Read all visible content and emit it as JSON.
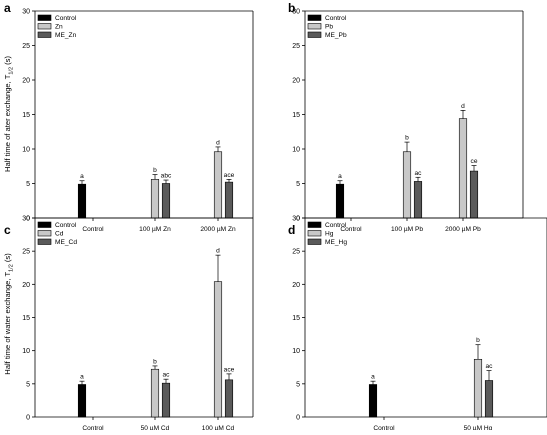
{
  "figure": {
    "ylabel_top": "Half time of ater exchange, T",
    "ylabel_bottom": "Half time of water exchange, T",
    "ylabel_subscript": "1/2",
    "ylabel_unit": "(s)"
  },
  "colors": {
    "control": "#000000",
    "metal": "#c8c8c8",
    "me": "#5a5a5a",
    "axis": "#000000"
  },
  "chart_data": [
    {
      "panel_letter": "a",
      "type": "bar",
      "ylim": [
        0,
        30
      ],
      "yticks": [
        0,
        5,
        10,
        15,
        20,
        25,
        30
      ],
      "categories": [
        "Control",
        "100 µM Zn",
        "2000 µM Zn"
      ],
      "legend": {
        "placement": "top-left",
        "entries": [
          "Control",
          "Zn",
          "ME_Zn"
        ]
      },
      "series": [
        {
          "name": "Control",
          "values": [
            4.9,
            null,
            null
          ],
          "errors": [
            0.5,
            null,
            null
          ],
          "labels": [
            "a",
            null,
            null
          ]
        },
        {
          "name": "Zn",
          "values": [
            null,
            5.6,
            9.6
          ],
          "errors": [
            null,
            0.7,
            0.7
          ],
          "labels": [
            null,
            "b",
            "d"
          ]
        },
        {
          "name": "ME_Zn",
          "values": [
            null,
            5.0,
            5.2
          ],
          "errors": [
            null,
            0.5,
            0.4
          ],
          "labels": [
            null,
            "abc",
            "ace"
          ]
        }
      ]
    },
    {
      "panel_letter": "b",
      "type": "bar",
      "ylim": [
        0,
        30
      ],
      "yticks": [
        0,
        5,
        10,
        15,
        20,
        25,
        30
      ],
      "categories": [
        "Control",
        "100 µM Pb",
        "2000 µM Pb"
      ],
      "legend": {
        "placement": "top-left",
        "entries": [
          "Control",
          "Pb",
          "ME_Pb"
        ]
      },
      "series": [
        {
          "name": "Control",
          "values": [
            4.9,
            null,
            null
          ],
          "errors": [
            0.5,
            null,
            null
          ],
          "labels": [
            "a",
            null,
            null
          ]
        },
        {
          "name": "Pb",
          "values": [
            null,
            9.6,
            14.4
          ],
          "errors": [
            null,
            1.4,
            1.2
          ],
          "labels": [
            null,
            "b",
            "d"
          ]
        },
        {
          "name": "ME_Pb",
          "values": [
            null,
            5.3,
            6.8
          ],
          "errors": [
            null,
            0.6,
            0.8
          ],
          "labels": [
            null,
            "ac",
            "ce"
          ]
        }
      ]
    },
    {
      "panel_letter": "c",
      "type": "bar",
      "ylim": [
        0,
        30
      ],
      "yticks": [
        0,
        5,
        10,
        15,
        20,
        25,
        30
      ],
      "categories": [
        "Control",
        "50 µM Cd",
        "100 µM Cd"
      ],
      "legend": {
        "placement": "top-left",
        "entries": [
          "Control",
          "Cd",
          "ME_Cd"
        ]
      },
      "series": [
        {
          "name": "Control",
          "values": [
            4.9,
            null,
            null
          ],
          "errors": [
            0.5,
            null,
            null
          ],
          "labels": [
            "a",
            null,
            null
          ]
        },
        {
          "name": "Cd",
          "values": [
            null,
            7.2,
            20.4
          ],
          "errors": [
            null,
            0.5,
            4.0
          ],
          "labels": [
            null,
            "b",
            "d"
          ]
        },
        {
          "name": "ME_Cd",
          "values": [
            null,
            5.1,
            5.6
          ],
          "errors": [
            null,
            0.6,
            0.9
          ],
          "labels": [
            null,
            "ac",
            "ace"
          ]
        }
      ]
    },
    {
      "panel_letter": "d",
      "type": "bar",
      "ylim": [
        0,
        30
      ],
      "yticks": [
        0,
        5,
        10,
        15,
        20,
        25,
        30
      ],
      "categories": [
        "Control",
        "50 µM Hg"
      ],
      "legend": {
        "placement": "top-left",
        "entries": [
          "Control",
          "Hg",
          "ME_Hg"
        ]
      },
      "series": [
        {
          "name": "Control",
          "values": [
            4.9,
            null
          ],
          "errors": [
            0.5,
            null
          ],
          "labels": [
            "a",
            null
          ]
        },
        {
          "name": "Hg",
          "values": [
            null,
            8.7
          ],
          "errors": [
            null,
            2.2
          ],
          "labels": [
            null,
            "b"
          ]
        },
        {
          "name": "ME_Hg",
          "values": [
            null,
            5.5
          ],
          "errors": [
            null,
            1.5
          ],
          "labels": [
            null,
            "ac"
          ]
        }
      ]
    }
  ]
}
